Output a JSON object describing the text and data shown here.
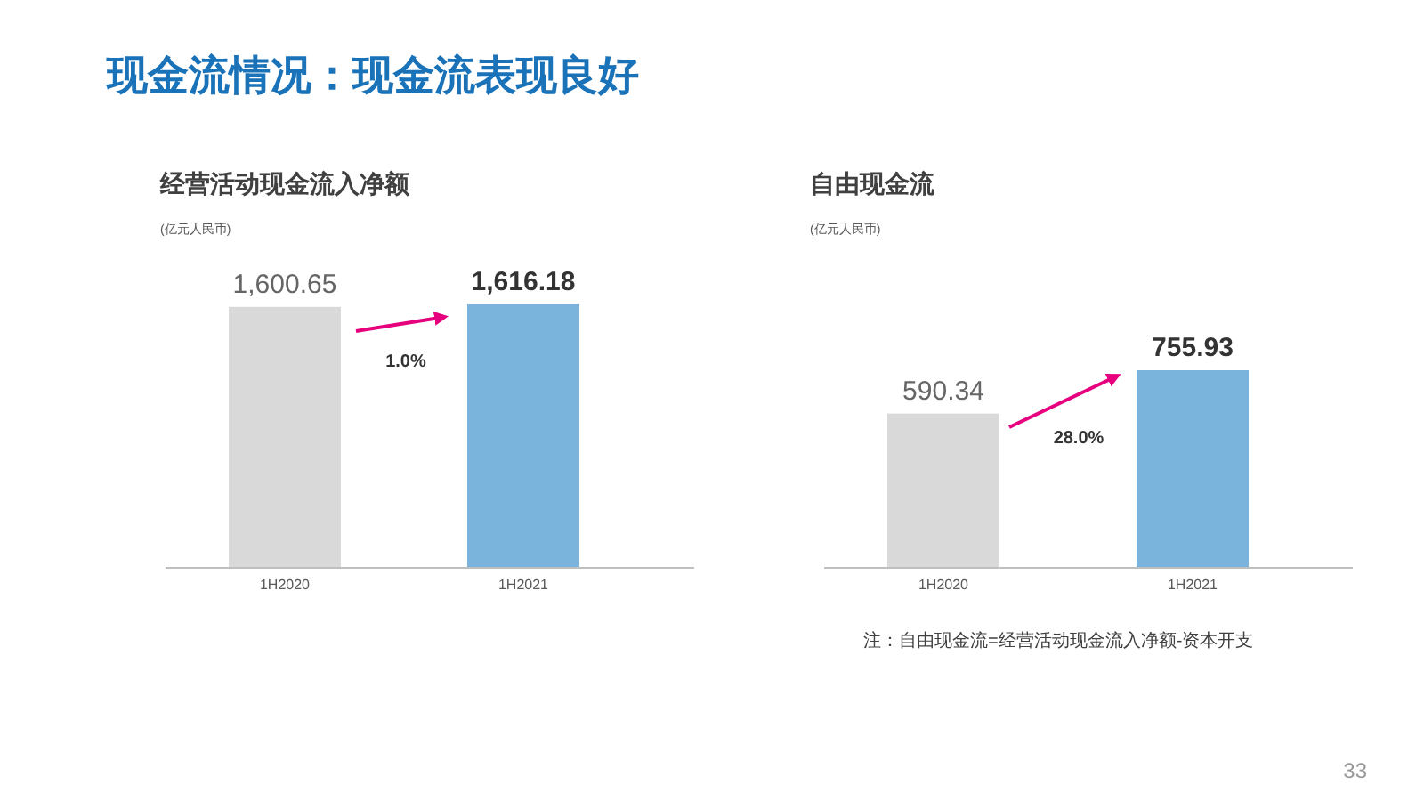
{
  "chart_data": [
    {
      "type": "bar",
      "title": "经营活动现金流入净额",
      "subtitle": "(亿元人民币)",
      "categories": [
        "1H2020",
        "1H2021"
      ],
      "values": [
        1600.65,
        1616.18
      ],
      "colors": [
        "#d9d9d9",
        "#7ab4dc"
      ],
      "data_labels": true,
      "value_labels": [
        "1,600.65",
        "1,616.18"
      ],
      "annotations": [
        "现金流情况：现金流表现良好",
        "1.0%"
      ]
    },
    {
      "type": "bar",
      "title": "自由现金流",
      "subtitle": "(亿元人民币)",
      "categories": [
        "1H2020",
        "1H2021"
      ],
      "values": [
        590.34,
        755.93
      ],
      "colors": [
        "#d9d9d9",
        "#7ab4dc"
      ],
      "data_labels": true,
      "value_labels": [
        "590.34",
        "755.93"
      ],
      "annotations": [
        "28.0%",
        "注：自由现金流=经营活动现金流入净额-资本开支",
        "33"
      ]
    }
  ]
}
